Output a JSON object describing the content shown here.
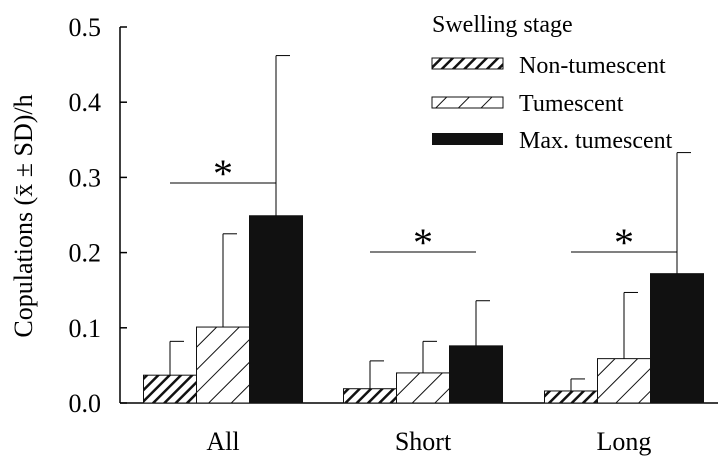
{
  "chart_data": {
    "type": "bar",
    "categories": [
      "All",
      "Short",
      "Long"
    ],
    "ylabel": "Copulations (x̄ ± SD)/h",
    "ylim": [
      0,
      0.5
    ],
    "yticks": [
      "0.0",
      "0.1",
      "0.2",
      "0.3",
      "0.4",
      "0.5"
    ],
    "yticks_values": [
      0,
      0.1,
      0.2,
      0.3,
      0.4,
      0.5
    ],
    "legend": {
      "title": "Swelling stage",
      "placement": "top-right"
    },
    "series": [
      {
        "name": "Non-tumescent",
        "pattern": "dense-hatch",
        "values": [
          0.037,
          0.019,
          0.016
        ],
        "sd_upper": [
          0.082,
          0.056,
          0.032
        ]
      },
      {
        "name": "Tumescent",
        "pattern": "wide-hatch",
        "values": [
          0.101,
          0.04,
          0.059
        ],
        "sd_upper": [
          0.225,
          0.082,
          0.147
        ]
      },
      {
        "name": "Max. tumescent",
        "pattern": "solid",
        "values": [
          0.249,
          0.076,
          0.172
        ],
        "sd_upper": [
          0.462,
          0.136,
          0.333
        ]
      }
    ],
    "annotations": [
      {
        "text": "*",
        "category": "All"
      },
      {
        "text": "*",
        "category": "Short"
      },
      {
        "text": "*",
        "category": "Long"
      }
    ],
    "colors": {
      "bar_fill": "#111111",
      "hatch_bg": "#ffffff",
      "axis": "#000000"
    }
  }
}
